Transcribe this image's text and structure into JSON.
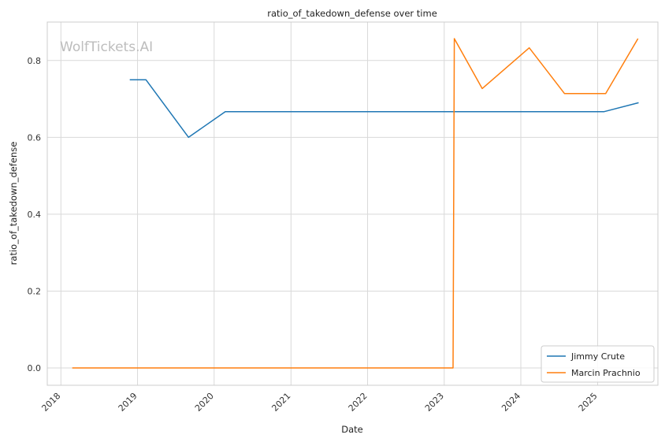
{
  "chart_data": {
    "type": "line",
    "title": "ratio_of_takedown_defense over time",
    "xlabel": "Date",
    "ylabel": "ratio_of_takedown_defense",
    "watermark": "WolfTickets.AI",
    "x_ticks": [
      "2018",
      "2019",
      "2020",
      "2021",
      "2022",
      "2023",
      "2024",
      "2025"
    ],
    "y_ticks": [
      "0.0",
      "0.2",
      "0.4",
      "0.6",
      "0.8"
    ],
    "xlim": [
      "2017-10-28",
      "2025-10-15"
    ],
    "ylim": [
      -0.045,
      0.9
    ],
    "grid": true,
    "legend_position": "lower-right",
    "series": [
      {
        "name": "Jimmy Crute",
        "color": "#1f77b4",
        "points": [
          [
            "2018-11-25",
            0.75
          ],
          [
            "2019-02-10",
            0.75
          ],
          [
            "2019-09-01",
            0.6
          ],
          [
            "2020-02-23",
            0.667
          ],
          [
            "2021-01-01",
            0.667
          ],
          [
            "2022-01-01",
            0.667
          ],
          [
            "2023-01-01",
            0.667
          ],
          [
            "2024-01-01",
            0.667
          ],
          [
            "2025-02-01",
            0.667
          ],
          [
            "2025-07-15",
            0.69
          ]
        ]
      },
      {
        "name": "Marcin Prachnio",
        "color": "#ff7f0e",
        "points": [
          [
            "2018-02-24",
            0.0
          ],
          [
            "2020-01-01",
            0.0
          ],
          [
            "2023-02-12",
            0.0
          ],
          [
            "2023-02-18",
            0.857
          ],
          [
            "2023-07-01",
            0.727
          ],
          [
            "2024-02-10",
            0.833
          ],
          [
            "2024-07-27",
            0.714
          ],
          [
            "2025-02-08",
            0.714
          ],
          [
            "2025-07-12",
            0.857
          ]
        ]
      }
    ]
  }
}
